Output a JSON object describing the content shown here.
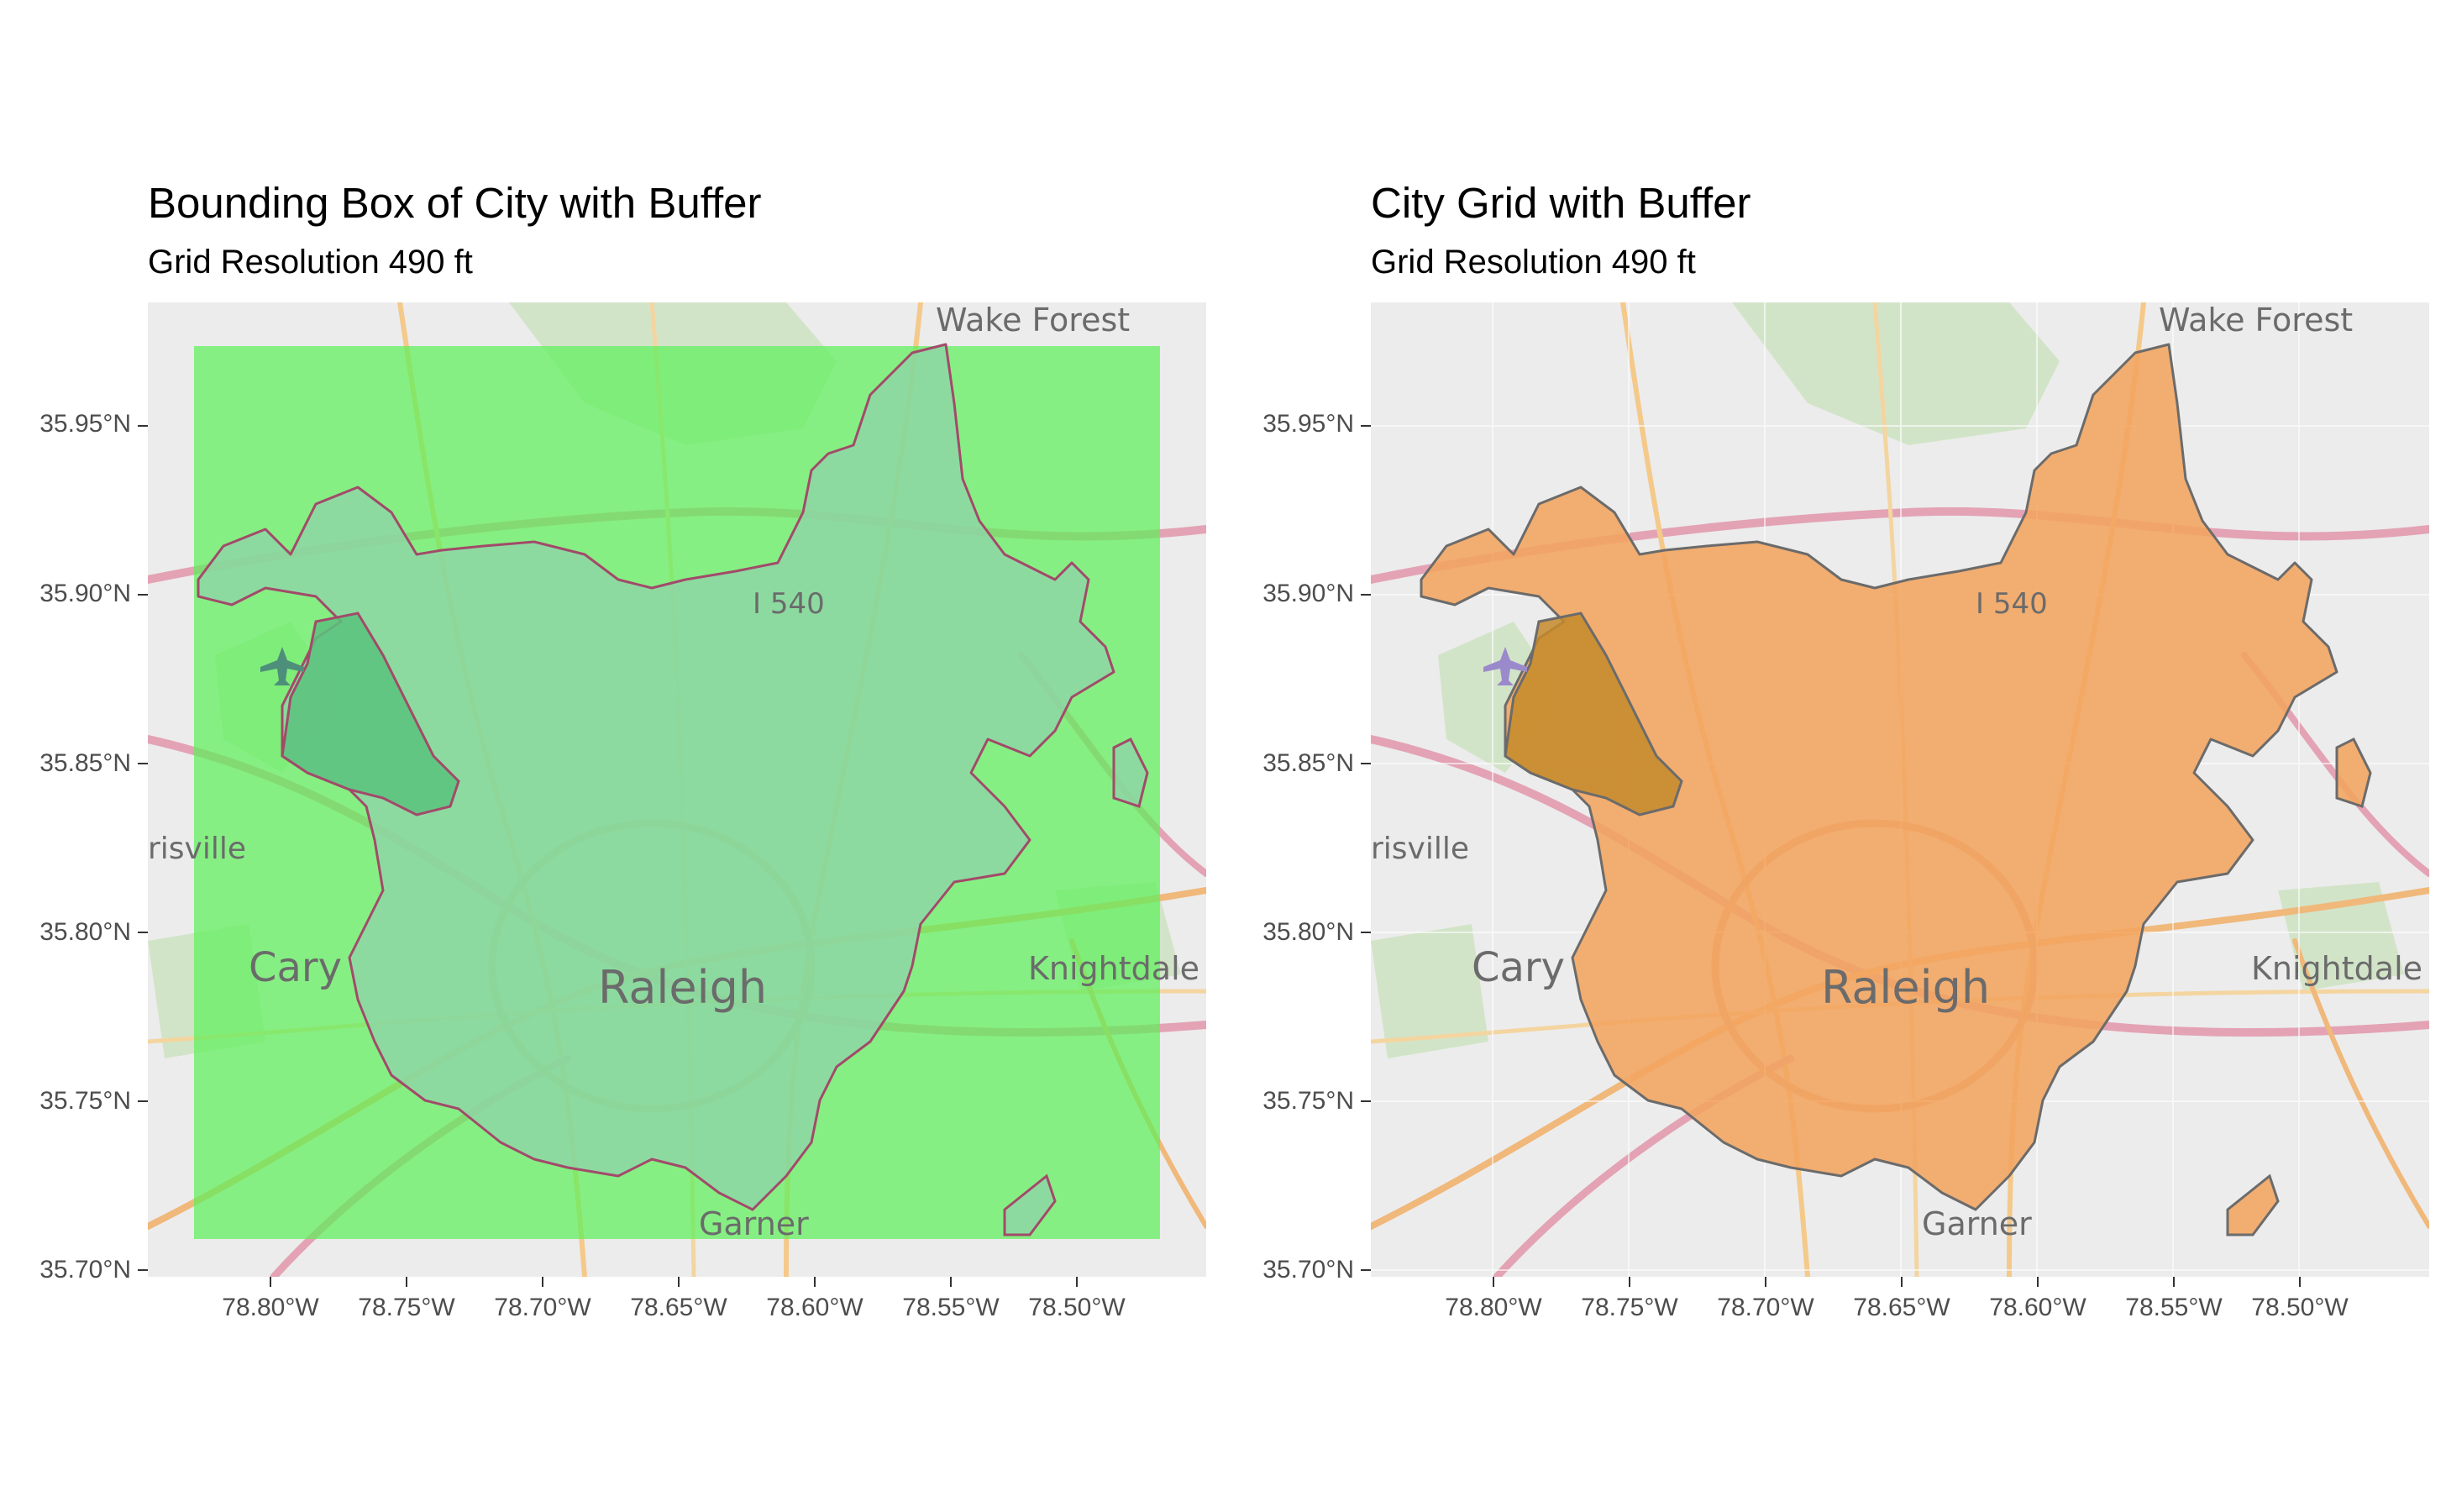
{
  "panels": [
    {
      "title": "Bounding Box of City with Buffer",
      "subtitle": "Grid Resolution 490 ft",
      "overlay_color": "#5ef05a",
      "city_fill": "#8fd4a8",
      "city_stroke": "#a24a6a"
    },
    {
      "title": "City Grid with Buffer",
      "subtitle": "Grid Resolution 490 ft",
      "overlay_color": "#f4a460",
      "city_fill": "#f2a45e",
      "city_stroke": "#6b6b6b"
    }
  ],
  "axes": {
    "y_ticks": [
      "35.95°N",
      "35.90°N",
      "35.85°N",
      "35.80°N",
      "35.75°N",
      "35.70°N"
    ],
    "x_ticks": [
      "78.80°W",
      "78.75°W",
      "78.70°W",
      "78.65°W",
      "78.60°W",
      "78.55°W",
      "78.50°W"
    ]
  },
  "basemap_labels": {
    "wake_forest": "Wake Forest",
    "i540": "I 540",
    "morrisville": "risville",
    "cary": "Cary",
    "raleigh": "Raleigh",
    "knightdale": "Knightdale",
    "garner": "Garner"
  },
  "icons": [
    "airport-icon"
  ]
}
